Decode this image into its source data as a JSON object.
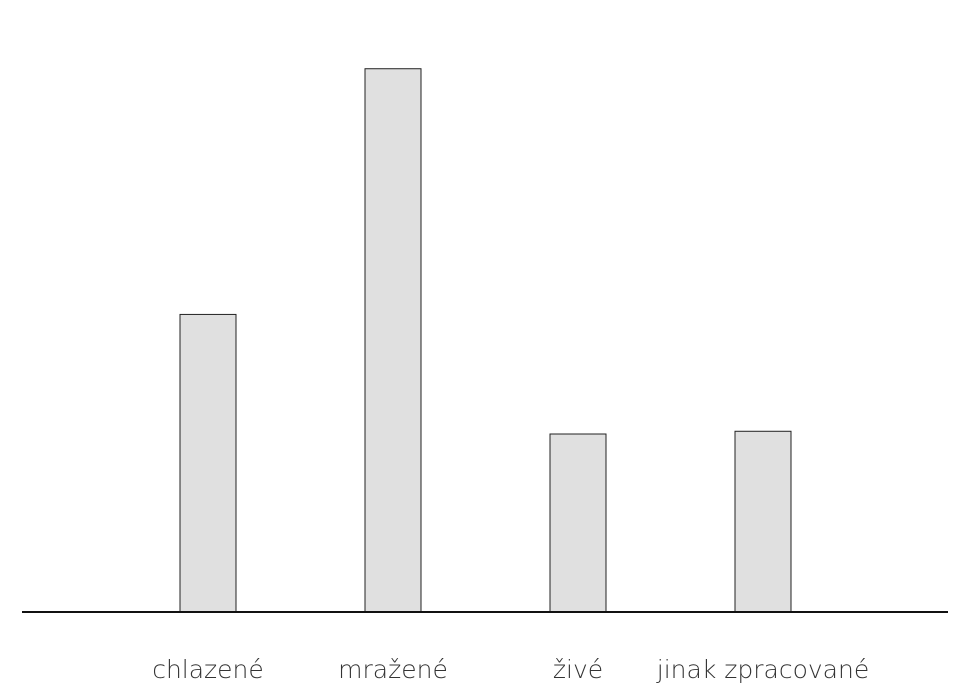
{
  "chart_data": {
    "type": "bar",
    "title": "",
    "xlabel": "",
    "ylabel": "",
    "categories": [
      "chlazené",
      "mražené",
      "živé",
      "jinak zpracované"
    ],
    "values": [
      54.5,
      99.5,
      32.6,
      33.1
    ],
    "ylim": [
      0,
      110
    ],
    "grid": false,
    "legend": "none",
    "colors": {
      "bar_fill": "#e0e0e0",
      "bar_stroke": "#222222",
      "axis": "#111111",
      "label": "#333333"
    }
  }
}
